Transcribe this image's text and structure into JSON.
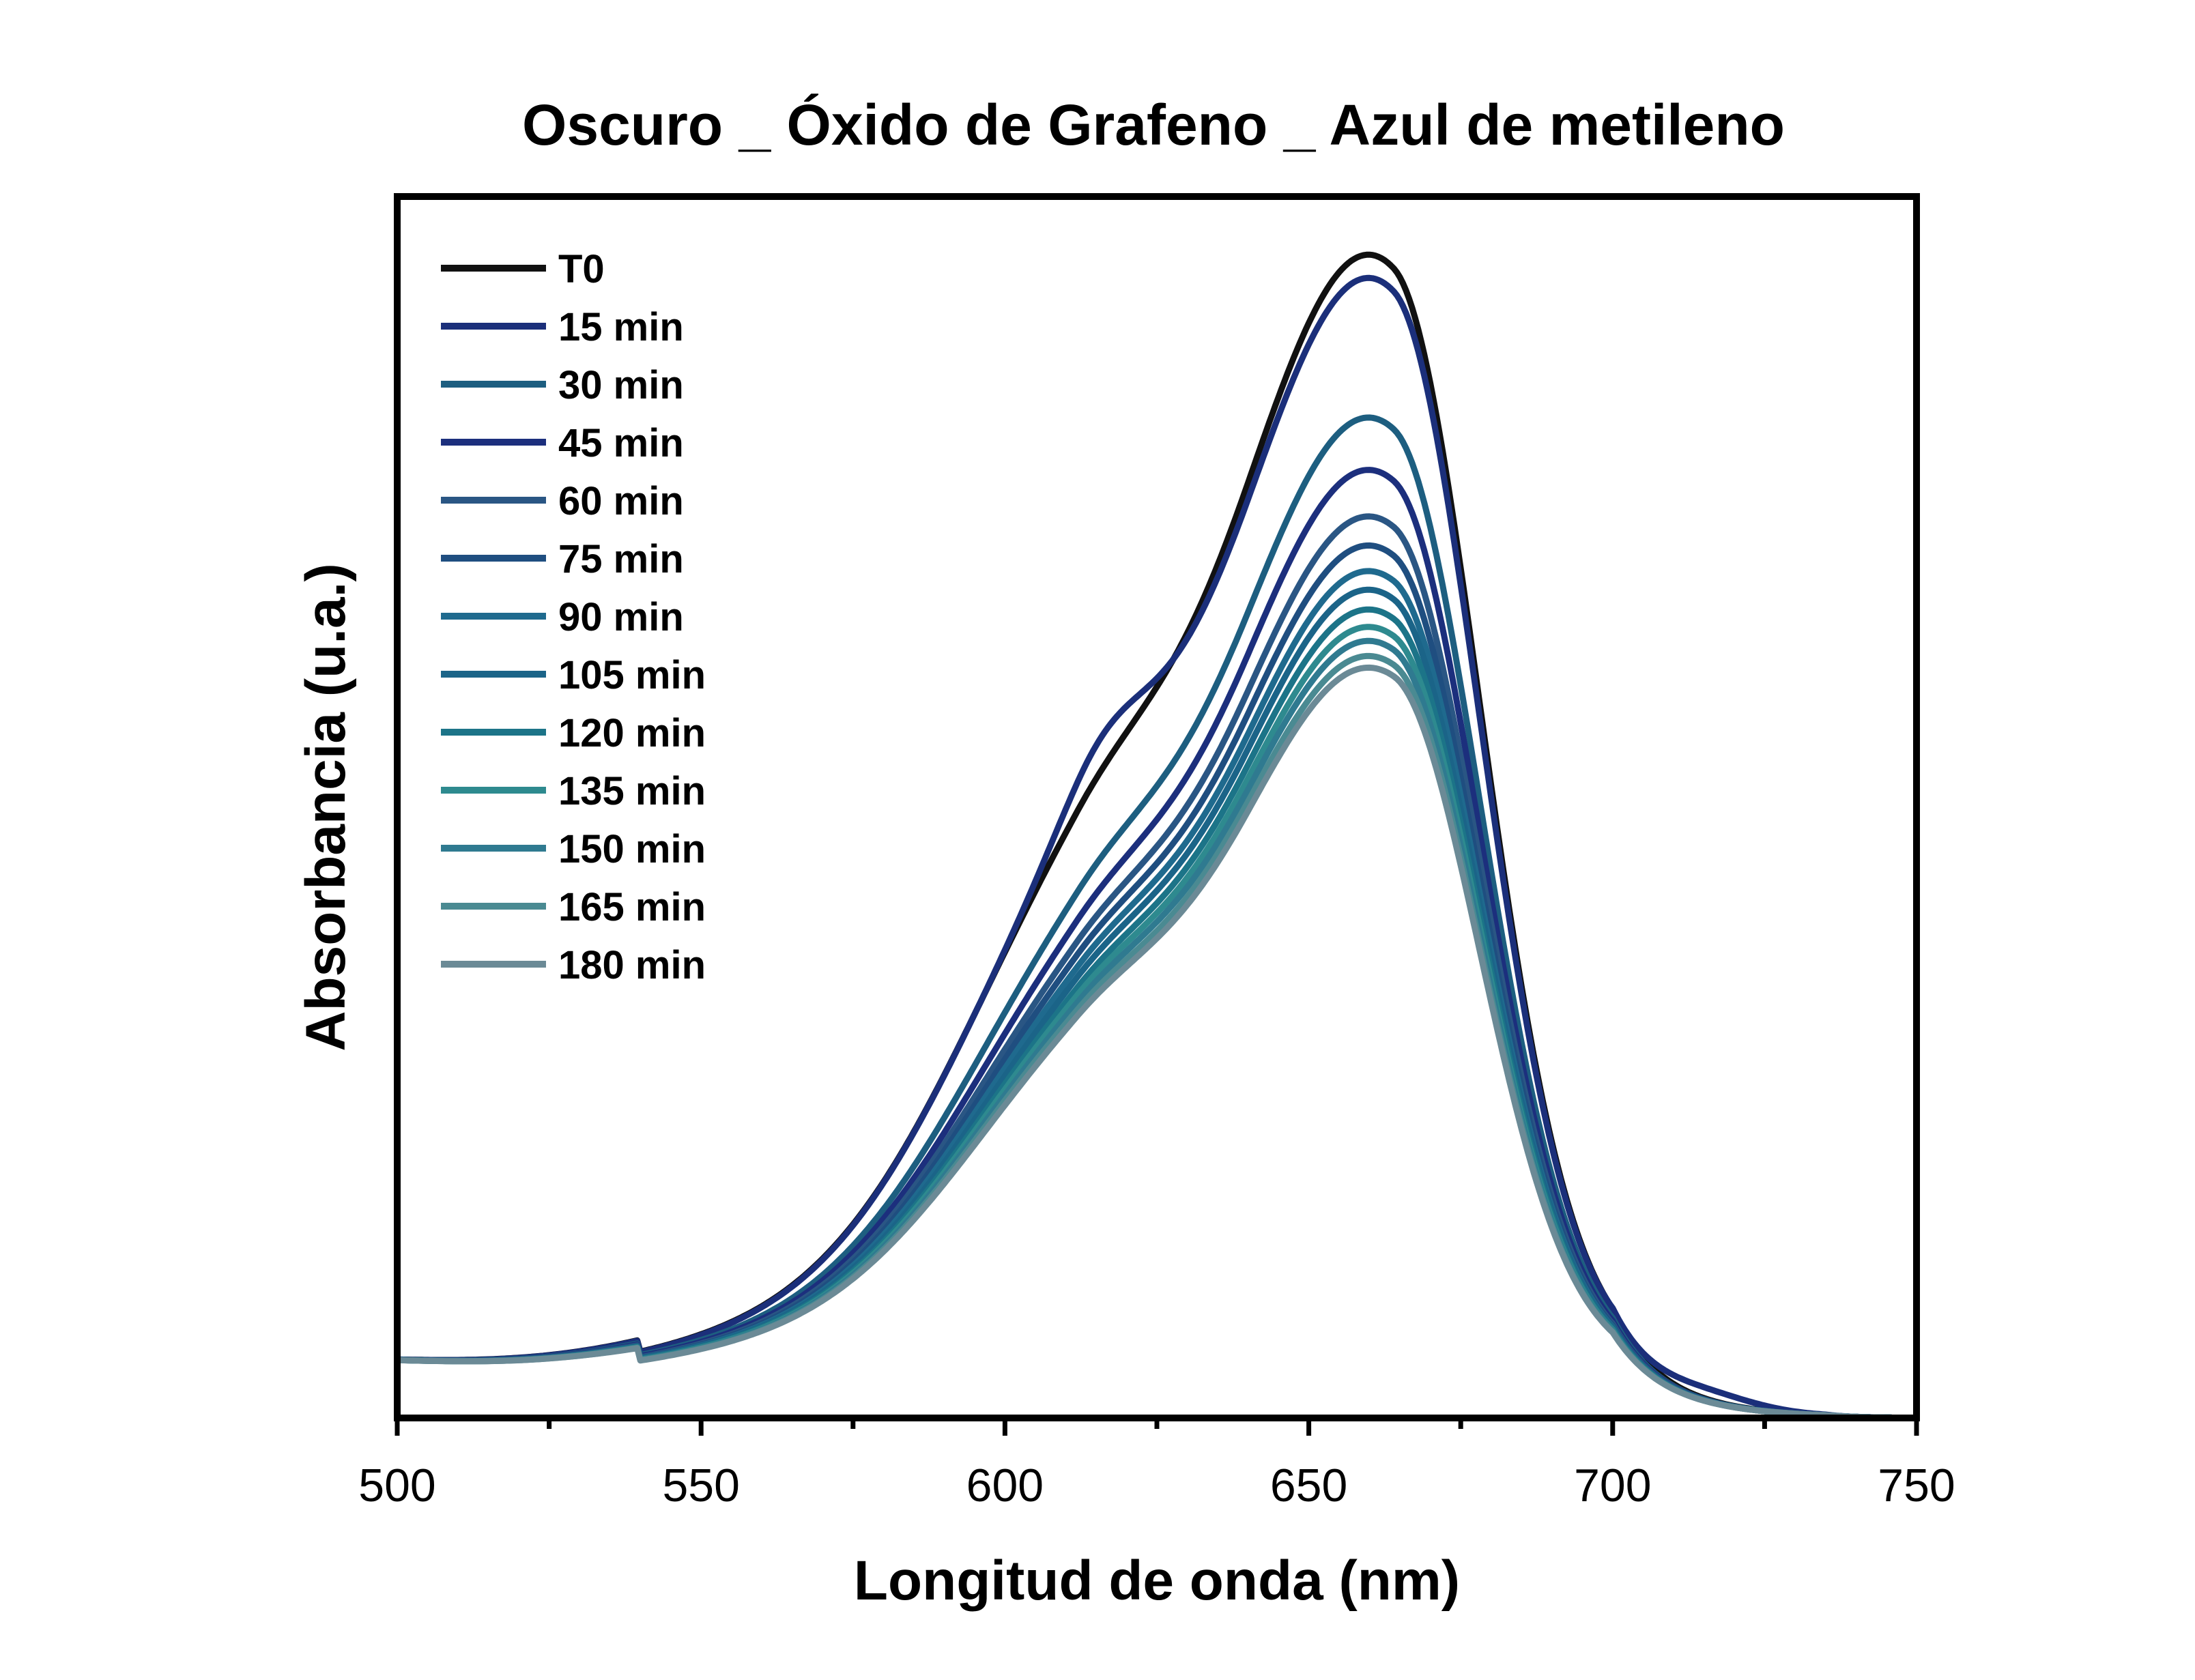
{
  "chart_data": {
    "type": "line",
    "title": "Oscuro _ Óxido de Grafeno _ Azul de metileno",
    "xlabel": "Longitud de onda (nm)",
    "ylabel": "Absorbancia (u.a.)",
    "xlim": [
      500,
      750
    ],
    "ylim": [
      0,
      1.05
    ],
    "x_ticks": [
      "500",
      "550",
      "600",
      "650",
      "700",
      "750"
    ],
    "y_ticks_shown": false,
    "legend_position": "top-left",
    "grid": false,
    "series": [
      {
        "name": "T0",
        "color": "#111111",
        "peak": 1.0,
        "shoulder": 0.515,
        "shoulder_dip": 0.0
      },
      {
        "name": "15 min",
        "color": "#1b2f7a",
        "peak": 0.98,
        "shoulder": 0.525,
        "shoulder_dip": 0.018,
        "tail_bump": true
      },
      {
        "name": "30 min",
        "color": "#1d5e80",
        "peak": 0.86,
        "shoulder": 0.445,
        "shoulder_dip": 0.0
      },
      {
        "name": "45 min",
        "color": "#1c2f7d",
        "peak": 0.815,
        "shoulder": 0.418,
        "shoulder_dip": 0.0
      },
      {
        "name": "60 min",
        "color": "#2a5684",
        "peak": 0.775,
        "shoulder": 0.402,
        "shoulder_dip": 0.0
      },
      {
        "name": "75 min",
        "color": "#1f4e80",
        "peak": 0.75,
        "shoulder": 0.392,
        "shoulder_dip": 0.0
      },
      {
        "name": "90 min",
        "color": "#1f6a8e",
        "peak": 0.728,
        "shoulder": 0.382,
        "shoulder_dip": 0.0
      },
      {
        "name": "105 min",
        "color": "#1b6488",
        "peak": 0.712,
        "shoulder": 0.372,
        "shoulder_dip": 0.0
      },
      {
        "name": "120 min",
        "color": "#1c7488",
        "peak": 0.695,
        "shoulder": 0.362,
        "shoulder_dip": 0.0
      },
      {
        "name": "135 min",
        "color": "#2e8a8f",
        "peak": 0.68,
        "shoulder": 0.357,
        "shoulder_dip": 0.0
      },
      {
        "name": "150 min",
        "color": "#2f7a90",
        "peak": 0.668,
        "shoulder": 0.35,
        "shoulder_dip": 0.0
      },
      {
        "name": "165 min",
        "color": "#4a8a92",
        "peak": 0.655,
        "shoulder": 0.344,
        "shoulder_dip": 0.0
      },
      {
        "name": "180 min",
        "color": "#6b8a96",
        "peak": 0.645,
        "shoulder": 0.338,
        "shoulder_dip": 0.0
      }
    ]
  }
}
